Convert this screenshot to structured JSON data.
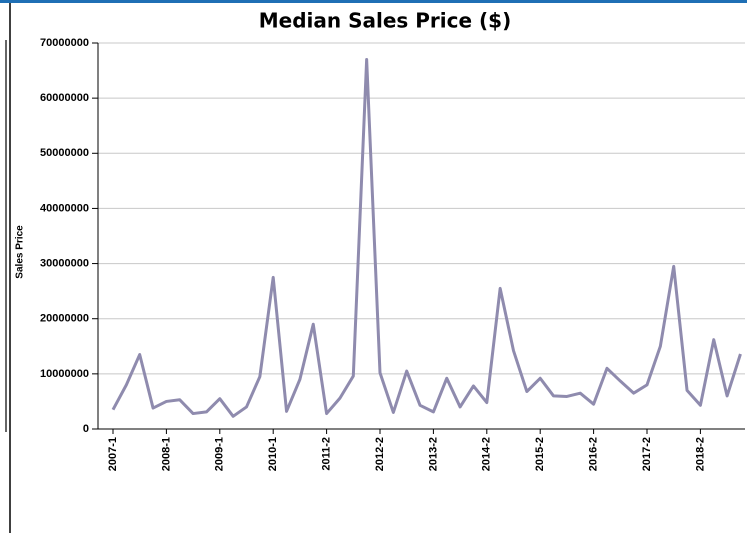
{
  "chart_data": {
    "type": "line",
    "title": "Median Sales Price ($)",
    "y_label": "Sales Price",
    "categories": [
      "2007-1",
      null,
      null,
      null,
      "2008-1",
      null,
      null,
      null,
      "2009-1",
      null,
      null,
      null,
      "2010-1",
      null,
      null,
      null,
      "2011-2",
      null,
      null,
      null,
      "2012-2",
      null,
      null,
      null,
      "2013-2",
      null,
      null,
      null,
      "2014-2",
      null,
      null,
      null,
      "2015-2",
      null,
      null,
      null,
      "2016-2",
      null,
      null,
      null,
      "2017-2",
      null,
      null,
      null,
      "2018-2",
      null,
      null,
      null
    ],
    "series": [
      {
        "name": "Median Sales Price",
        "color": "#8f8bae",
        "values": [
          3500000,
          8000000,
          13500000,
          3800000,
          5000000,
          5300000,
          2800000,
          3100000,
          5500000,
          2300000,
          4000000,
          9500000,
          27500000,
          3200000,
          9000000,
          19000000,
          2800000,
          5600000,
          9600000,
          67000000,
          10200000,
          3000000,
          10500000,
          4300000,
          3100000,
          9200000,
          4000000,
          7800000,
          4800000,
          25500000,
          14200000,
          6800000,
          9200000,
          6000000,
          5900000,
          6500000,
          4500000,
          11000000,
          8700000,
          6500000,
          8000000,
          15000000,
          29500000,
          7000000,
          4300000,
          16200000,
          6000000,
          13600000
        ]
      }
    ],
    "ylim": [
      0,
      70000000
    ],
    "yticks": [
      0,
      10000000,
      20000000,
      30000000,
      40000000,
      50000000,
      60000000,
      70000000
    ],
    "grid": true
  }
}
